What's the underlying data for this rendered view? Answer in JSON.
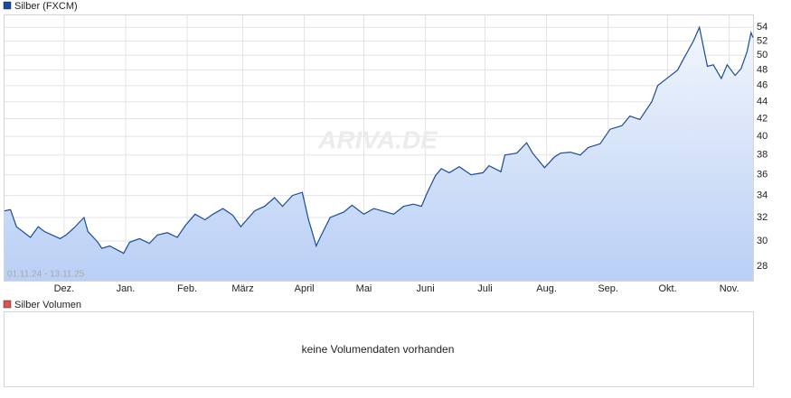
{
  "chart_data": {
    "type": "line",
    "range_label": "01.11.24 - 13.11.25",
    "watermark": "ARIVA.DE",
    "x": [
      "01.11.24",
      "04.11.24",
      "07.11.24",
      "14.11.24",
      "18.11.24",
      "21.11.24",
      "25.11.24",
      "29.11.24",
      "02.12.24",
      "06.12.24",
      "11.12.24",
      "13.12.24",
      "18.12.24",
      "20.12.24",
      "24.12.24",
      "31.12.24",
      "03.01.25",
      "08.01.25",
      "13.01.25",
      "17.01.25",
      "22.01.25",
      "27.01.25",
      "31.01.25",
      "05.02.25",
      "10.02.25",
      "14.02.25",
      "19.02.25",
      "24.02.25",
      "28.02.25",
      "03.03.25",
      "07.03.25",
      "12.03.25",
      "17.03.25",
      "21.03.25",
      "26.03.25",
      "31.03.25",
      "03.04.25",
      "07.04.25",
      "09.04.25",
      "14.04.25",
      "21.04.25",
      "25.04.25",
      "01.05.25",
      "06.05.25",
      "12.05.25",
      "16.05.25",
      "21.05.25",
      "26.05.25",
      "30.05.25",
      "02.06.25",
      "06.06.25",
      "09.06.25",
      "13.06.25",
      "18.06.25",
      "24.06.25",
      "30.06.25",
      "03.07.25",
      "09.07.25",
      "11.07.25",
      "17.07.25",
      "22.07.25",
      "25.07.25",
      "31.07.25",
      "05.08.25",
      "08.08.25",
      "13.08.25",
      "18.08.25",
      "22.08.25",
      "28.08.25",
      "02.09.25",
      "08.09.25",
      "12.09.25",
      "17.09.25",
      "23.09.25",
      "26.09.25",
      "01.10.25",
      "06.10.25",
      "09.10.25",
      "14.10.25",
      "17.10.25",
      "21.10.25",
      "24.10.25",
      "28.10.25",
      "31.10.25",
      "04.11.25",
      "07.11.25",
      "10.11.25",
      "12.11.25",
      "13.11.25"
    ],
    "series": [
      {
        "name": "Silber (FXCM)",
        "color": "#1a4b9c",
        "values": [
          32.6,
          32.7,
          31.2,
          30.3,
          31.2,
          30.8,
          30.5,
          30.2,
          30.5,
          31.1,
          32.0,
          30.8,
          29.9,
          29.4,
          29.6,
          29.0,
          29.9,
          30.2,
          29.8,
          30.5,
          30.7,
          30.3,
          31.3,
          32.3,
          31.8,
          32.3,
          32.8,
          32.2,
          31.2,
          31.8,
          32.6,
          33.0,
          33.8,
          33.0,
          34.0,
          34.3,
          31.9,
          29.6,
          30.3,
          32.0,
          32.5,
          33.1,
          32.3,
          32.8,
          32.5,
          32.3,
          33.0,
          33.2,
          33.0,
          34.3,
          35.9,
          36.6,
          36.2,
          36.8,
          36.0,
          36.2,
          36.9,
          36.3,
          38.0,
          38.2,
          39.3,
          38.2,
          36.7,
          37.8,
          38.2,
          38.3,
          38.0,
          38.8,
          39.2,
          40.8,
          41.2,
          42.3,
          41.9,
          44.0,
          46.0,
          47.0,
          48.0,
          49.5,
          52.0,
          54.0,
          48.5,
          48.7,
          46.9,
          48.7,
          47.3,
          48.2,
          50.5,
          53.2,
          52.5
        ]
      }
    ],
    "xlim": [
      "01.11.24",
      "13.11.25"
    ],
    "xticks": [
      {
        "value": "01.12.24",
        "label": "Dez."
      },
      {
        "value": "01.01.25",
        "label": "Jan."
      },
      {
        "value": "01.02.25",
        "label": "Feb."
      },
      {
        "value": "01.03.25",
        "label": "März"
      },
      {
        "value": "01.04.25",
        "label": "April"
      },
      {
        "value": "01.05.25",
        "label": "Mai"
      },
      {
        "value": "01.06.25",
        "label": "Juni"
      },
      {
        "value": "01.07.25",
        "label": "Juli"
      },
      {
        "value": "01.08.25",
        "label": "Aug."
      },
      {
        "value": "01.09.25",
        "label": "Sep."
      },
      {
        "value": "01.10.25",
        "label": "Okt."
      },
      {
        "value": "01.11.25",
        "label": "Nov."
      }
    ],
    "ylim": [
      26.9,
      55.8
    ],
    "yticks": [
      28,
      30,
      32,
      34,
      36,
      38,
      40,
      42,
      44,
      46,
      48,
      50,
      52,
      54
    ],
    "log_scale": true,
    "grid": true,
    "volume": {
      "legend": "Silber Volumen",
      "color": "#d9534f",
      "message": "keine Volumendaten vorhanden"
    }
  }
}
